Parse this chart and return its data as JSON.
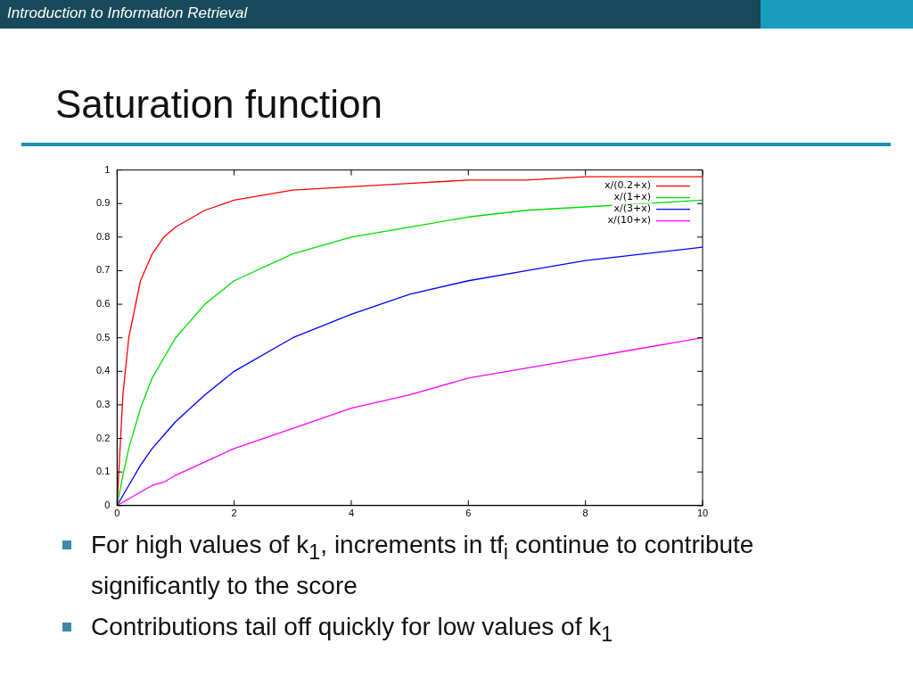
{
  "chart_data": {
    "type": "line",
    "title": "Saturation function",
    "annotations": [
      "Introduction to Information Retrieval",
      "For high values of k$_{1}$, increments in tf$_{i}$ continue to contribute significantly to the score",
      "Contributions tail off quickly for low values of k$_{1}$"
    ],
    "x": [
      0,
      0.1,
      0.2,
      0.4,
      0.6,
      0.8,
      1,
      1.5,
      2,
      3,
      4,
      5,
      6,
      7,
      8,
      9,
      10
    ],
    "series": [
      {
        "name": "x/(0.2+x)",
        "color": "#ff0000",
        "values": [
          0,
          0.33,
          0.5,
          0.67,
          0.75,
          0.8,
          0.83,
          0.88,
          0.91,
          0.94,
          0.95,
          0.96,
          0.97,
          0.97,
          0.98,
          0.98,
          0.98
        ]
      },
      {
        "name": "x/(1+x)",
        "color": "#00dd00",
        "values": [
          0,
          0.09,
          0.17,
          0.29,
          0.38,
          0.44,
          0.5,
          0.6,
          0.67,
          0.75,
          0.8,
          0.83,
          0.86,
          0.88,
          0.89,
          null,
          0.91
        ]
      },
      {
        "name": "x/(3+x)",
        "color": "#0000ff",
        "values": [
          0,
          0.03,
          0.06,
          0.12,
          0.17,
          0.21,
          0.25,
          0.33,
          0.4,
          0.5,
          0.57,
          0.63,
          0.67,
          0.7,
          0.73,
          0.75,
          0.77
        ]
      },
      {
        "name": "x/(10+x)",
        "color": "#ff00ff",
        "values": [
          0,
          0.01,
          0.02,
          0.04,
          0.06,
          0.07,
          0.09,
          0.13,
          0.17,
          0.23,
          0.29,
          0.33,
          0.38,
          0.41,
          0.44,
          0.47,
          0.5
        ]
      }
    ],
    "xlim": [
      0,
      10
    ],
    "xticks": [
      0,
      2,
      4,
      6,
      8,
      10
    ],
    "ylim": [
      0,
      1
    ],
    "yticks": [
      0,
      0.1,
      0.2,
      0.3,
      0.4,
      0.5,
      0.6,
      0.7,
      0.8,
      0.9,
      1
    ],
    "grid": false,
    "legend": "top right",
    "marker": "none",
    "line_style": "solid"
  }
}
